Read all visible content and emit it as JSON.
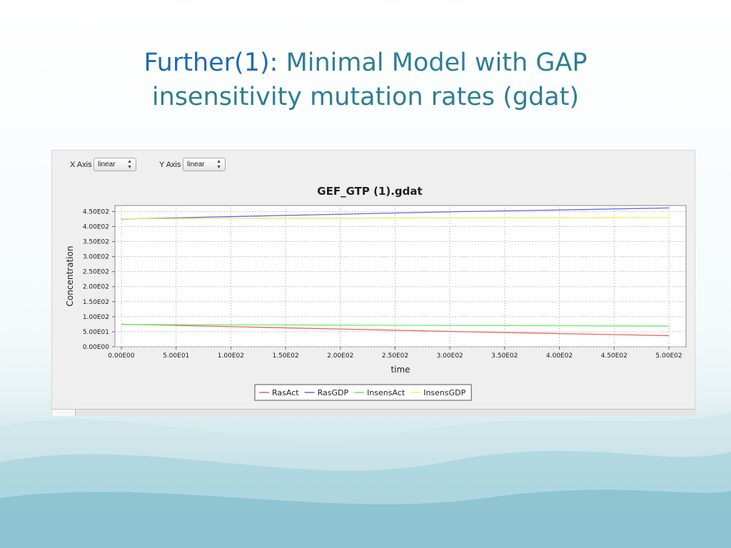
{
  "slide": {
    "title_accent": "Further(1):",
    "title_rest": " Minimal Model with GAP insensitivity mutation rates (gdat)"
  },
  "controls": {
    "x_axis_label": "X Axis",
    "x_axis_value": "linear",
    "y_axis_label": "Y Axis",
    "y_axis_value": "linear"
  },
  "colors": {
    "title_accent": "#1f6bb0",
    "title_text": "#2f7e95",
    "RasAct": "#f06060",
    "RasGDP": "#6666ee",
    "InsensAct": "#66ee66",
    "InsensGDP": "#eeee55"
  },
  "chart_data": {
    "type": "line",
    "title": "GEF_GTP (1).gdat",
    "xlabel": "time",
    "ylabel": "Concentration",
    "xlim": [
      0,
      500
    ],
    "ylim": [
      0,
      470
    ],
    "grid": true,
    "legend_position": "bottom",
    "x_ticks": [
      0,
      50,
      100,
      150,
      200,
      250,
      300,
      350,
      400,
      450,
      500
    ],
    "x_tick_labels": [
      "0.00E00",
      "5.00E01",
      "1.00E02",
      "1.50E02",
      "2.00E02",
      "2.50E02",
      "3.00E02",
      "3.50E02",
      "4.00E02",
      "4.50E02",
      "5.00E02"
    ],
    "y_ticks": [
      0,
      50,
      100,
      150,
      200,
      250,
      300,
      350,
      400,
      450
    ],
    "y_tick_labels": [
      "0.00E00",
      "5.00E01",
      "1.00E02",
      "1.50E02",
      "2.00E02",
      "2.50E02",
      "3.00E02",
      "3.50E02",
      "4.00E02",
      "4.50E02"
    ],
    "series": [
      {
        "name": "RasAct",
        "x": [
          0,
          100,
          200,
          300,
          400,
          500
        ],
        "y": [
          75,
          67,
          59,
          51,
          44,
          37
        ]
      },
      {
        "name": "RasGDP",
        "x": [
          0,
          100,
          200,
          300,
          400,
          500
        ],
        "y": [
          425,
          433,
          441,
          449,
          455,
          462
        ]
      },
      {
        "name": "InsensAct",
        "x": [
          0,
          100,
          200,
          300,
          400,
          500
        ],
        "y": [
          74,
          73,
          72,
          71,
          70,
          69
        ]
      },
      {
        "name": "InsensGDP",
        "x": [
          0,
          100,
          200,
          300,
          400,
          500
        ],
        "y": [
          426,
          427,
          428,
          429,
          429,
          430
        ]
      }
    ]
  }
}
